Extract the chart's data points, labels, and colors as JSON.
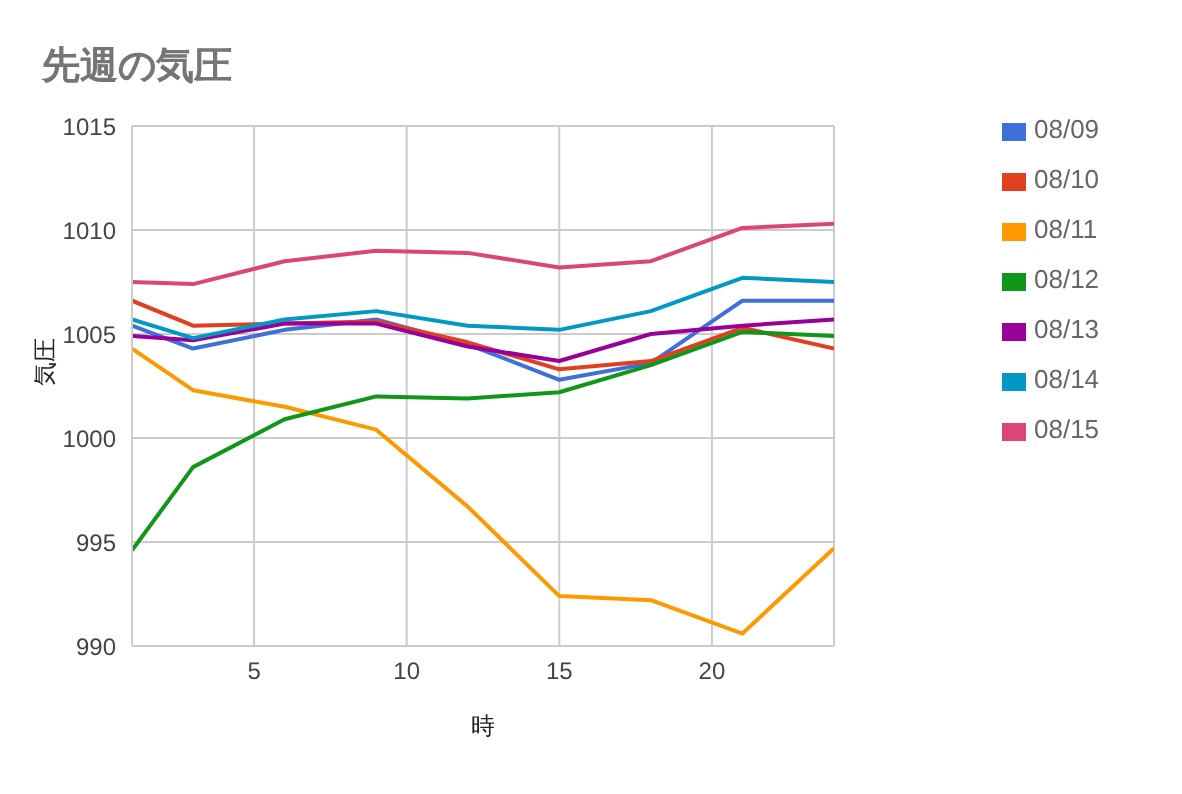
{
  "chart_data": {
    "type": "line",
    "title": "先週の気圧",
    "xlabel": "時",
    "ylabel": "気圧",
    "x": [
      1,
      3,
      6,
      9,
      12,
      15,
      18,
      21,
      24
    ],
    "series": [
      {
        "name": "08/09",
        "color": "#3f6fd8",
        "values": [
          1005.4,
          1004.3,
          1005.2,
          1005.7,
          1004.5,
          1002.8,
          1003.6,
          1006.6,
          1006.6
        ]
      },
      {
        "name": "08/10",
        "color": "#e0401f",
        "values": [
          1006.6,
          1005.4,
          1005.5,
          1005.6,
          1004.6,
          1003.3,
          1003.7,
          1005.3,
          1004.3
        ]
      },
      {
        "name": "08/11",
        "color": "#ff9900",
        "values": [
          1004.3,
          1002.3,
          1001.5,
          1000.4,
          996.7,
          992.4,
          992.2,
          990.6,
          994.7
        ]
      },
      {
        "name": "08/12",
        "color": "#109618",
        "values": [
          994.6,
          998.6,
          1000.9,
          1002.0,
          1001.9,
          1002.2,
          1003.5,
          1005.1,
          1004.9
        ]
      },
      {
        "name": "08/13",
        "color": "#990099",
        "values": [
          1004.9,
          1004.7,
          1005.5,
          1005.5,
          1004.4,
          1003.7,
          1005.0,
          1005.4,
          1005.7
        ]
      },
      {
        "name": "08/14",
        "color": "#0099c6",
        "values": [
          1005.7,
          1004.8,
          1005.7,
          1006.1,
          1005.4,
          1005.2,
          1006.1,
          1007.7,
          1007.5
        ]
      },
      {
        "name": "08/15",
        "color": "#dd4477",
        "values": [
          1007.5,
          1007.4,
          1008.5,
          1009.0,
          1008.9,
          1008.2,
          1008.5,
          1010.1,
          1010.3
        ]
      }
    ],
    "xlim": [
      1,
      24
    ],
    "xticks": [
      5,
      10,
      15,
      20
    ],
    "ylim": [
      990,
      1015
    ],
    "yticks": [
      990,
      995,
      1000,
      1005,
      1010,
      1015
    ],
    "grid": true,
    "legend": "right",
    "marker": "none",
    "line_style": "solid"
  }
}
